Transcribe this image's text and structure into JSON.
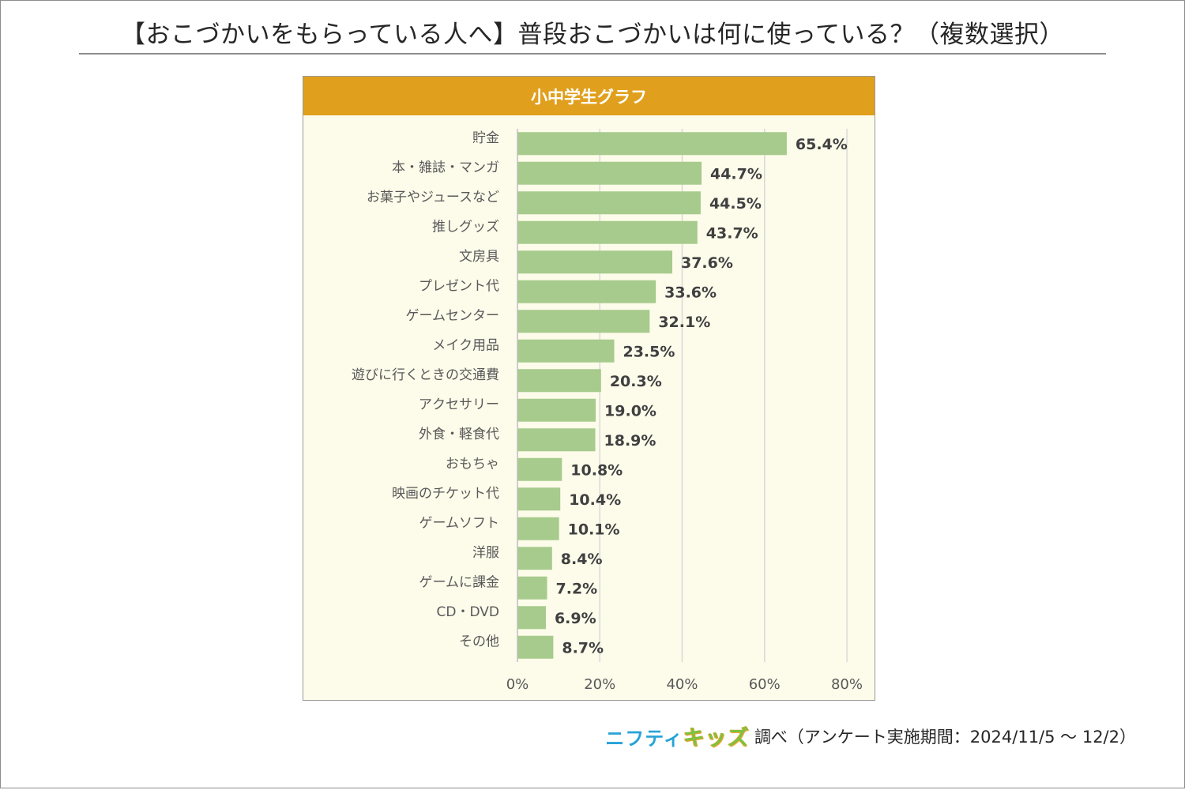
{
  "header": {
    "title": "【おこづかいをもらっている人へ】普段おこづかいは何に使っている？（複数選択）"
  },
  "footer": {
    "logo_part1": "ニフティ",
    "logo_part2": "キッズ",
    "note": "調べ（アンケート実施期間：2024/11/5 ～ 12/2）"
  },
  "colors": {
    "panel_header": "#e0a01d",
    "panel_bg": "#fdfbea",
    "bar": "#a6cb8c",
    "gridline": "#d9d9d9",
    "logo_blue": "#27a3d8",
    "logo_green": "#7cc242"
  },
  "chart_data": {
    "type": "bar",
    "orientation": "horizontal",
    "title": "小中学生グラフ",
    "categories": [
      "貯金",
      "本・雑誌・マンガ",
      "お菓子やジュースなど",
      "推しグッズ",
      "文房具",
      "プレゼント代",
      "ゲームセンター",
      "メイク用品",
      "遊びに行くときの交通費",
      "アクセサリー",
      "外食・軽食代",
      "おもちゃ",
      "映画のチケット代",
      "ゲームソフト",
      "洋服",
      "ゲームに課金",
      "CD・DVD",
      "その他"
    ],
    "values": [
      65.4,
      44.7,
      44.5,
      43.7,
      37.6,
      33.6,
      32.1,
      23.5,
      20.3,
      19.0,
      18.9,
      10.8,
      10.4,
      10.1,
      8.4,
      7.2,
      6.9,
      8.7
    ],
    "value_labels": [
      "65.4%",
      "44.7%",
      "44.5%",
      "43.7%",
      "37.6%",
      "33.6%",
      "32.1%",
      "23.5%",
      "20.3%",
      "19.0%",
      "18.9%",
      "10.8%",
      "10.4%",
      "10.1%",
      "8.4%",
      "7.2%",
      "6.9%",
      "8.7%"
    ],
    "x_ticks": [
      0,
      20,
      40,
      60,
      80
    ],
    "x_tick_labels": [
      "0%",
      "20%",
      "40%",
      "60%",
      "80%"
    ],
    "xlim": [
      0,
      80
    ],
    "grid": true,
    "legend": "none"
  }
}
